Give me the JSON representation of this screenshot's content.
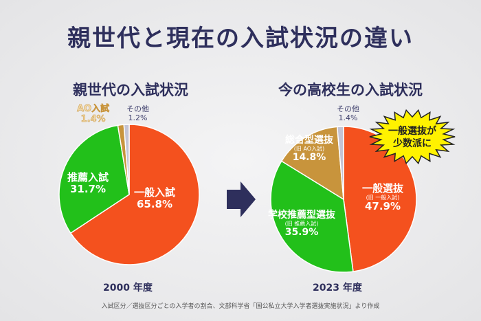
{
  "title": "親世代と現在の入試状況の違い",
  "callout": "一般選抜が少数派に",
  "note": "入試区分／選抜区分ごとの入学者の割合、文部科学省「国公私立大学入学者選抜実施状況」より作成",
  "chart_data": [
    {
      "type": "pie",
      "title": "親世代の入試状況",
      "xlabel": "2000 年度",
      "categories": [
        "一般入試",
        "推薦入試",
        "AO入試",
        "その他"
      ],
      "values": [
        65.8,
        31.7,
        1.4,
        1.2
      ],
      "value_labels": [
        "65.8%",
        "31.7%",
        "1.4%",
        "1.2%"
      ],
      "colors": [
        "#f4511e",
        "#22c01a",
        "#c8943c",
        "#c4c4d4"
      ]
    },
    {
      "type": "pie",
      "title": "今の高校生の入試状況",
      "xlabel": "2023 年度",
      "categories": [
        "一般選抜",
        "学校推薦型選抜",
        "総合型選抜",
        "その他"
      ],
      "sublabels": [
        "(旧 一般入試)",
        "(旧 推薦入試)",
        "(旧 AO入試)",
        ""
      ],
      "values": [
        47.9,
        35.9,
        14.8,
        1.4
      ],
      "value_labels": [
        "47.9%",
        "35.9%",
        "14.8%",
        "1.4%"
      ],
      "colors": [
        "#f4511e",
        "#22c01a",
        "#c8943c",
        "#c4c4d4"
      ]
    }
  ]
}
